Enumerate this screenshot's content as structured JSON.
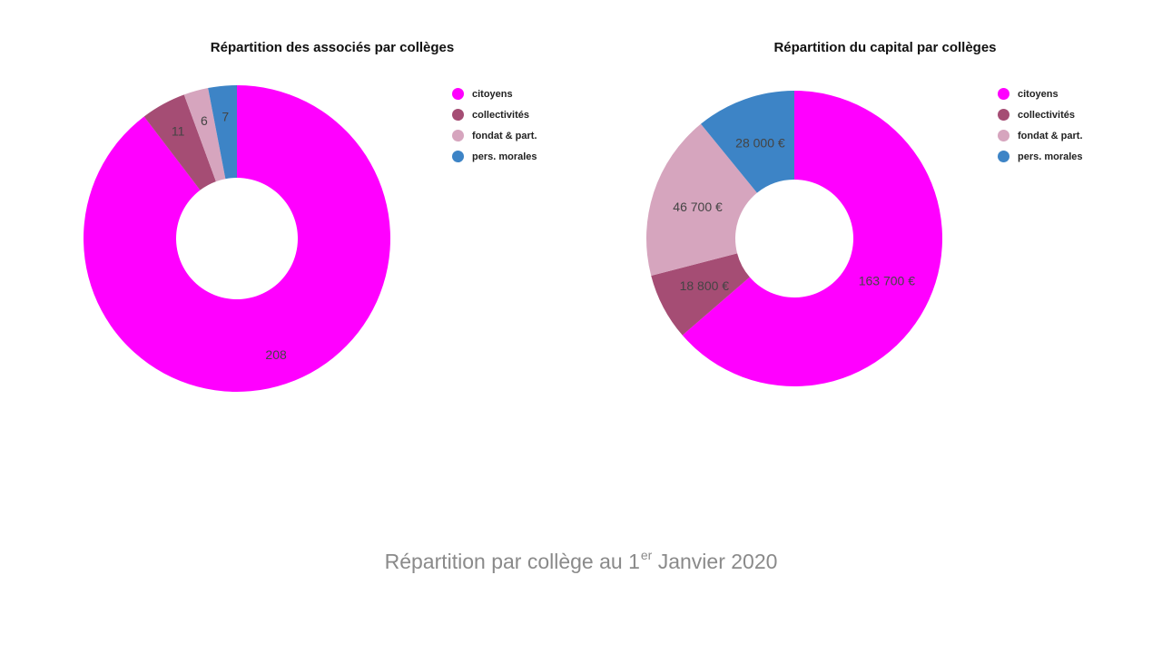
{
  "colors": {
    "citoyens": "#FF00FF",
    "collectivites": "#A54D74",
    "fondat": "#D6A5BE",
    "morales": "#3D84C6"
  },
  "caption": {
    "main": "Répartition par collège au 1",
    "sup": "er",
    "tail": " Janvier 2020"
  },
  "chart_data": [
    {
      "type": "pie",
      "donut": true,
      "title": "Répartition des associés par collèges",
      "categories": [
        "citoyens",
        "collectivités",
        "fondat & part.",
        "pers. morales"
      ],
      "values": [
        208,
        11,
        6,
        7
      ],
      "labels": [
        "208",
        "11",
        "6",
        "7"
      ],
      "colors": [
        "#FF00FF",
        "#A54D74",
        "#D6A5BE",
        "#3D84C6"
      ],
      "legend": "right"
    },
    {
      "type": "pie",
      "donut": true,
      "title": "Répartition du capital par collèges",
      "categories": [
        "citoyens",
        "collectivités",
        "fondat & part.",
        "pers. morales"
      ],
      "values": [
        163700,
        18800,
        46700,
        28000
      ],
      "labels": [
        "163 700 €",
        "18 800 €",
        "46 700 €",
        "28 000 €"
      ],
      "colors": [
        "#FF00FF",
        "#A54D74",
        "#D6A5BE",
        "#3D84C6"
      ],
      "legend": "right"
    }
  ]
}
